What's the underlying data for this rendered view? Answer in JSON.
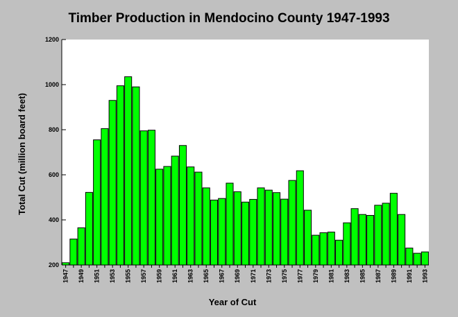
{
  "chart_data": {
    "type": "bar",
    "title": "Timber Production in Mendocino County 1947-1993",
    "xlabel": "Year of Cut",
    "ylabel": "Total Cut (million board feet)",
    "ylim": [
      200,
      1200
    ],
    "yticks": [
      200,
      400,
      600,
      800,
      1000,
      1200
    ],
    "xtick_labels": [
      "1947",
      "1949",
      "1951",
      "1953",
      "1955",
      "1957",
      "1959",
      "1961",
      "1963",
      "1965",
      "1967",
      "1969",
      "1971",
      "1973",
      "1975",
      "1977",
      "1979",
      "1981",
      "1983",
      "1985",
      "1987",
      "1989",
      "1991",
      "1993"
    ],
    "categories": [
      "1947",
      "1948",
      "1949",
      "1950",
      "1951",
      "1952",
      "1953",
      "1954",
      "1955",
      "1956",
      "1957",
      "1958",
      "1959",
      "1960",
      "1961",
      "1962",
      "1963",
      "1964",
      "1965",
      "1966",
      "1967",
      "1968",
      "1969",
      "1970",
      "1971",
      "1972",
      "1973",
      "1974",
      "1975",
      "1976",
      "1977",
      "1978",
      "1979",
      "1980",
      "1981",
      "1982",
      "1983",
      "1984",
      "1985",
      "1986",
      "1987",
      "1988",
      "1989",
      "1990",
      "1991",
      "1992",
      "1993"
    ],
    "values": [
      210,
      315,
      365,
      522,
      755,
      805,
      930,
      995,
      1035,
      990,
      795,
      798,
      625,
      637,
      683,
      730,
      635,
      612,
      542,
      488,
      495,
      563,
      525,
      479,
      491,
      542,
      532,
      521,
      492,
      575,
      618,
      443,
      332,
      343,
      346,
      310,
      387,
      450,
      424,
      420,
      465,
      474,
      518,
      424,
      275,
      252,
      258
    ],
    "bar_color": "#00ff00",
    "plot_background": "#ffffff",
    "page_background": "#c0c0c0",
    "grid": false,
    "legend": "none"
  }
}
